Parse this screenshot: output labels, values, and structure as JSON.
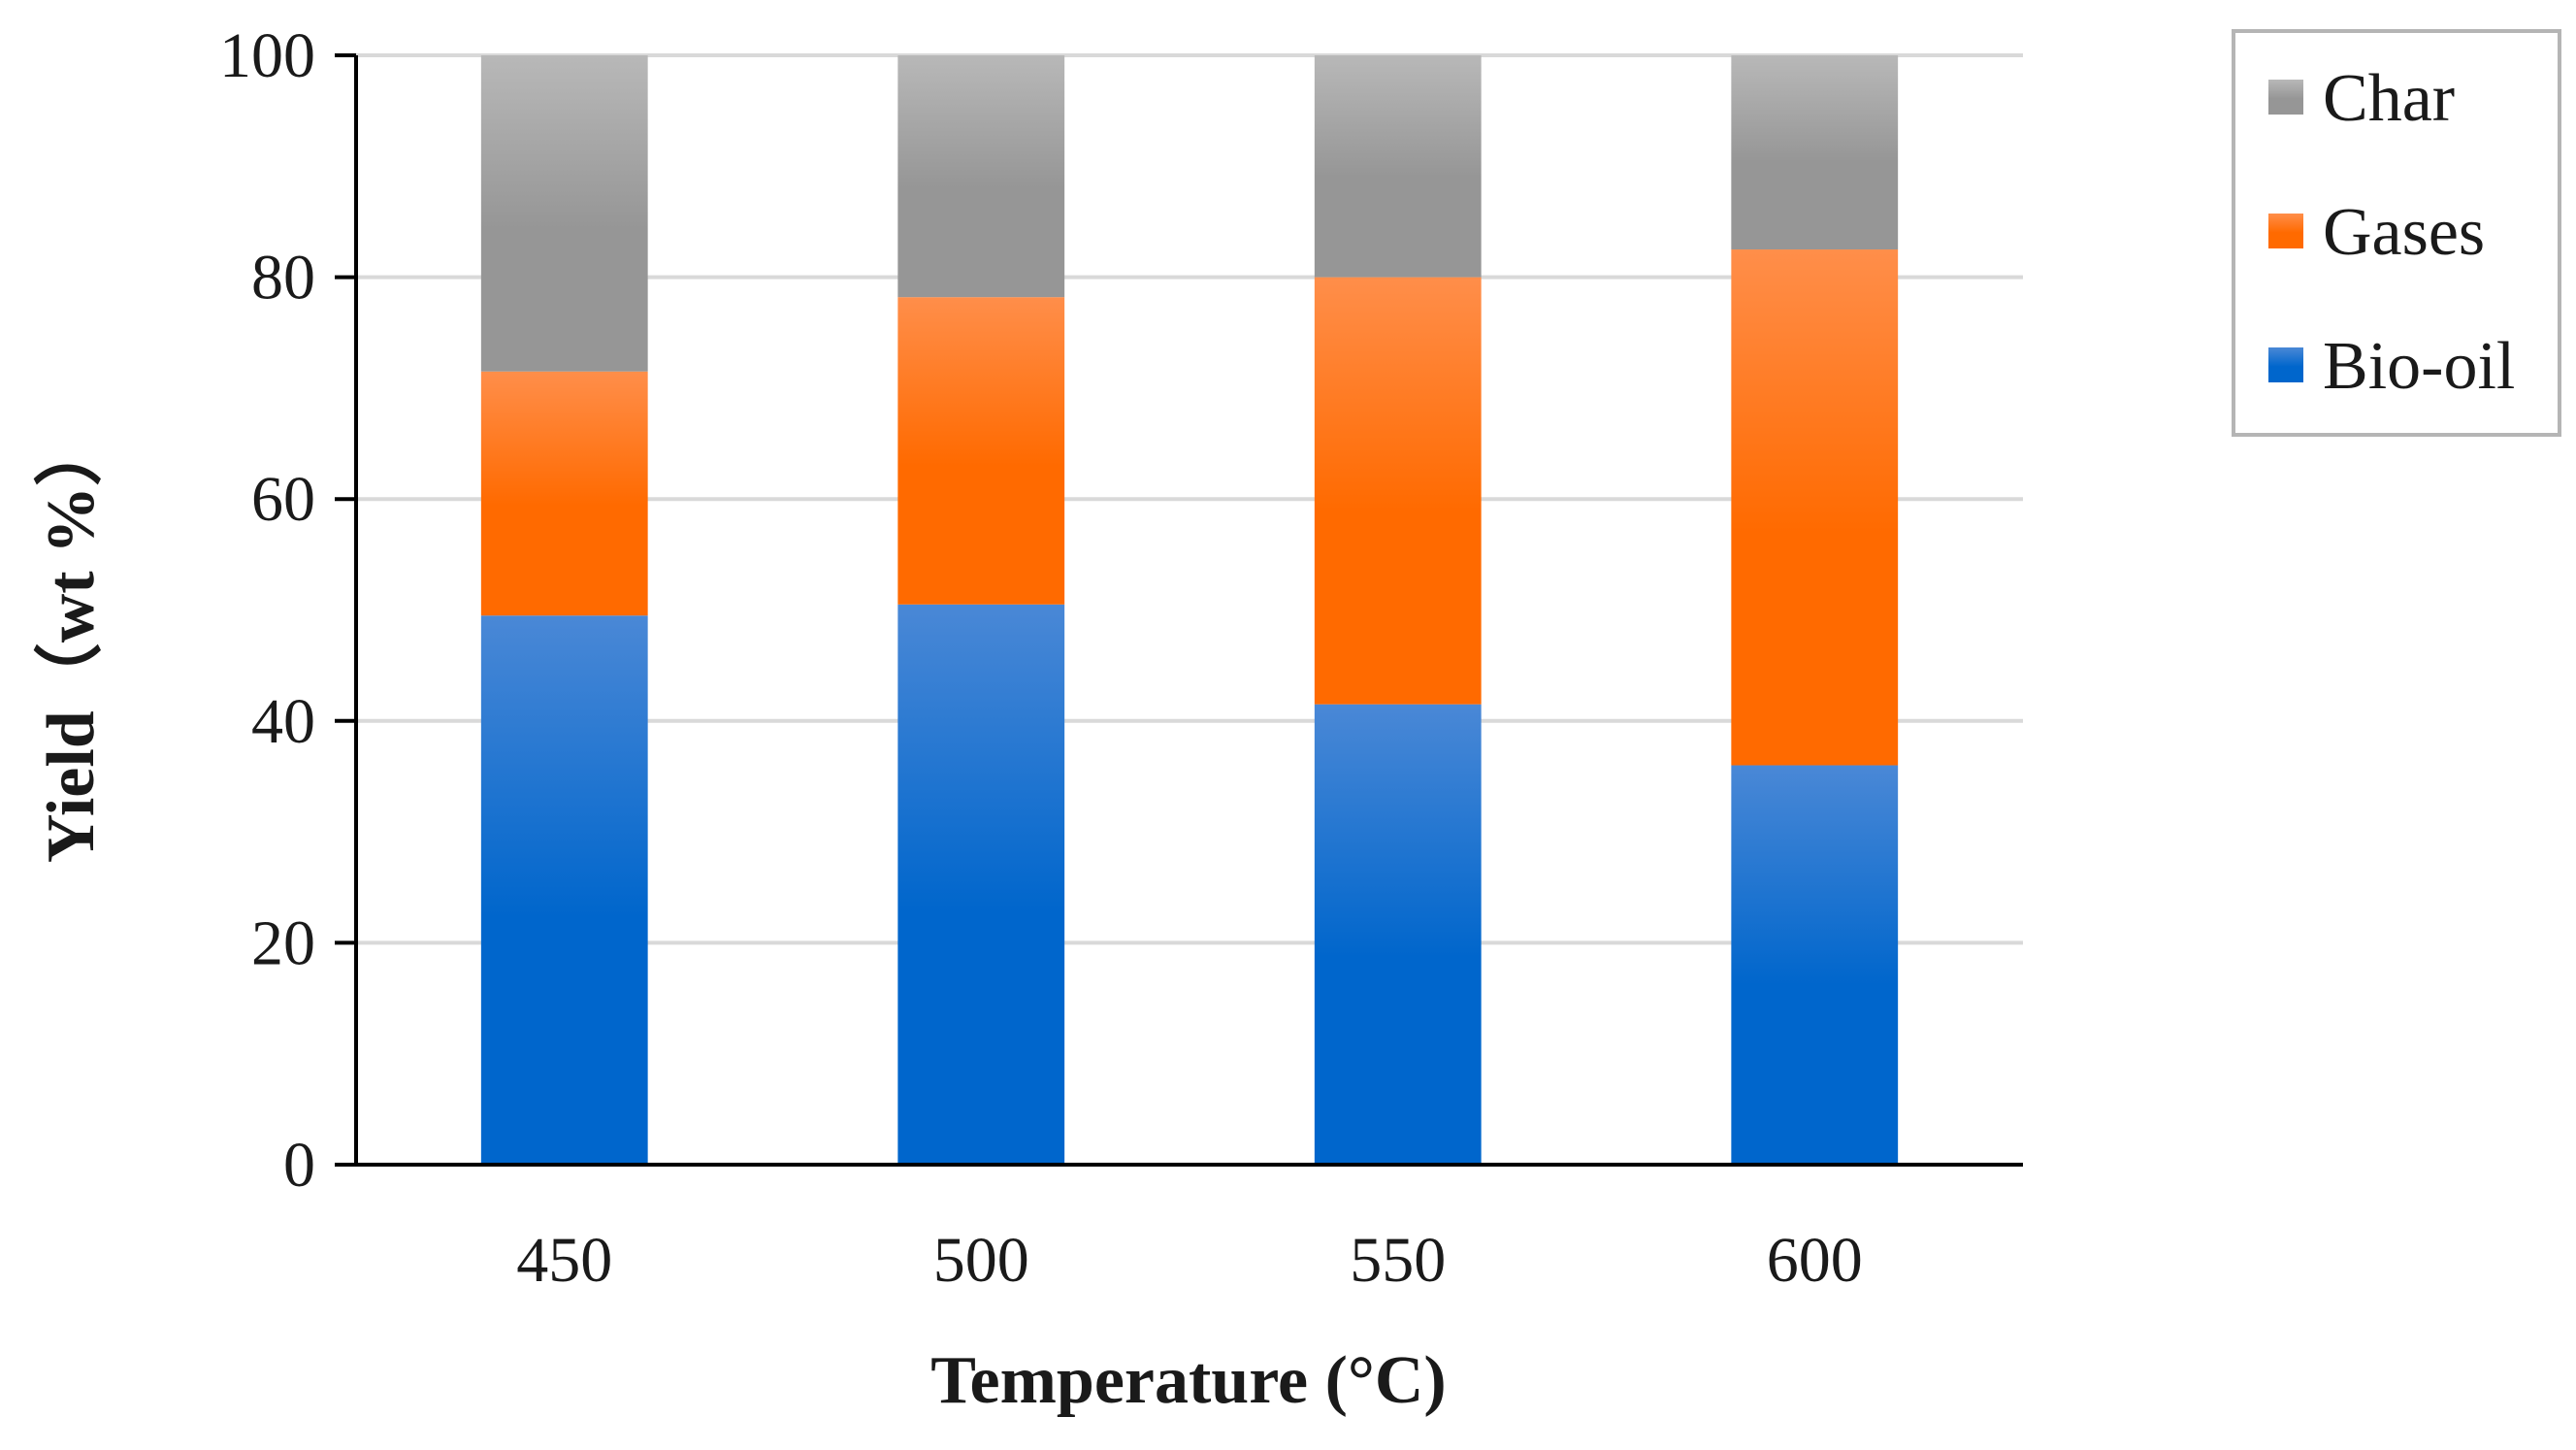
{
  "chart_data": {
    "type": "bar",
    "stacked": true,
    "title": "",
    "xlabel": "Temperature (°C)",
    "ylabel": "Yield（wt %）",
    "categories": [
      "450",
      "500",
      "550",
      "600"
    ],
    "ylim": [
      0,
      100
    ],
    "yticks": [
      "0",
      "20",
      "40",
      "60",
      "80",
      "100"
    ],
    "grid": true,
    "legend_position": "top-right",
    "series": [
      {
        "name": "Bio-oil",
        "color": "#0066cc",
        "color_light": "#4a88d6",
        "values": [
          49.5,
          50.5,
          41.5,
          36
        ]
      },
      {
        "name": "Gases",
        "color": "#ff6a00",
        "color_light": "#ff8e4a",
        "values": [
          22,
          27.7,
          38.5,
          46.5
        ]
      },
      {
        "name": "Char",
        "color": "#969696",
        "color_light": "#b8b8b8",
        "values": [
          28.5,
          21.8,
          20,
          17.5
        ]
      }
    ],
    "legend_order": [
      "Char",
      "Gases",
      "Bio-oil"
    ]
  }
}
